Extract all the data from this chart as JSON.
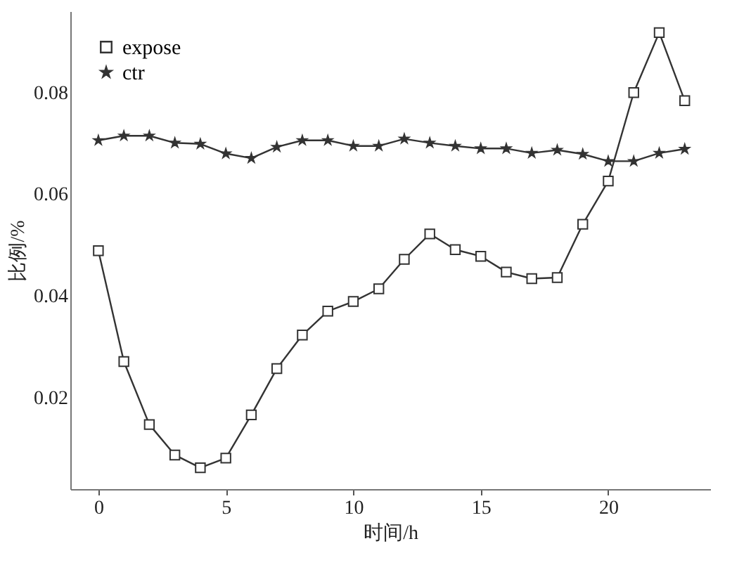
{
  "chart_data": {
    "type": "line",
    "xlabel": "时间/h",
    "ylabel": "比例/%",
    "x": [
      0,
      1,
      2,
      3,
      4,
      5,
      6,
      7,
      8,
      9,
      10,
      11,
      12,
      13,
      14,
      15,
      16,
      17,
      18,
      19,
      20,
      21,
      22,
      23
    ],
    "xlim": [
      -1.1,
      24
    ],
    "xticks": [
      0,
      5,
      10,
      15,
      20
    ],
    "ylim": [
      0.002,
      0.096
    ],
    "yticks": [
      0.02,
      0.04,
      0.06,
      0.08
    ],
    "legend": "top left",
    "grid": false,
    "series": [
      {
        "name": "expose",
        "color": "#333333",
        "marker": "square",
        "values": [
          0.0489,
          0.0271,
          0.0147,
          0.0087,
          0.0062,
          0.0081,
          0.0166,
          0.0257,
          0.0323,
          0.037,
          0.0389,
          0.0414,
          0.0472,
          0.0522,
          0.0491,
          0.0478,
          0.0447,
          0.0434,
          0.0436,
          0.0541,
          0.0626,
          0.08,
          0.0918,
          0.0784
        ]
      },
      {
        "name": "ctr",
        "color": "#333333",
        "marker": "star",
        "values": [
          0.0706,
          0.0715,
          0.0715,
          0.0701,
          0.0699,
          0.068,
          0.0671,
          0.0693,
          0.0706,
          0.0706,
          0.0695,
          0.0695,
          0.0709,
          0.0701,
          0.0695,
          0.069,
          0.069,
          0.0681,
          0.0687,
          0.0679,
          0.0665,
          0.0665,
          0.0681,
          0.0689
        ]
      }
    ]
  }
}
